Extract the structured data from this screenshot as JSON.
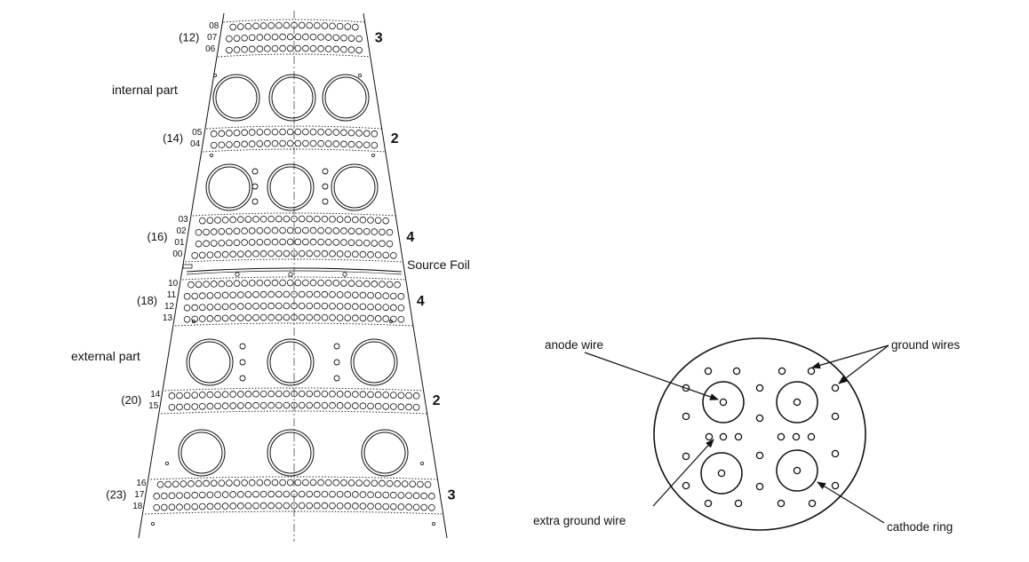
{
  "colors": {
    "ink": "#111111",
    "background": "#ffffff"
  },
  "left_diagram": {
    "internal_label": "internal part",
    "external_label": "external part",
    "source_foil_label": "Source Foil",
    "blocks": [
      {
        "layers": [
          "08",
          "07",
          "06"
        ],
        "group": "(12)",
        "rows": "3"
      },
      {
        "layers": [
          "05",
          "04"
        ],
        "group": "(14)",
        "rows": "2"
      },
      {
        "layers": [
          "03",
          "02",
          "01",
          "00"
        ],
        "group": "(16)",
        "rows": "4"
      },
      {
        "layers": [
          "10",
          "11",
          "12",
          "13"
        ],
        "group": "(18)",
        "rows": "4"
      },
      {
        "layers": [
          "14",
          "15"
        ],
        "group": "(20)",
        "rows": "2"
      },
      {
        "layers": [
          "16",
          "17",
          "18"
        ],
        "group": "(23)",
        "rows": "3"
      }
    ]
  },
  "right_diagram": {
    "labels": {
      "anode_wire": "anode wire",
      "ground_wires": "ground wires",
      "extra_ground_wire": "extra ground wire",
      "cathode_ring": "cathode ring"
    }
  }
}
